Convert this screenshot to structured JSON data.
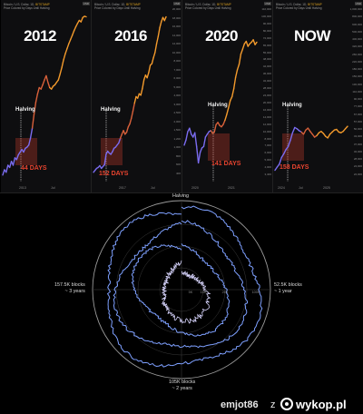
{
  "chart_data": [
    {
      "type": "line",
      "panel_title": "2012",
      "header": [
        "Bitcoin / U.S. Dollar, 1D, BITSTAMP",
        "Price Colored by Days Until Halving"
      ],
      "header_exchange": "BITSTAMP",
      "currency": "USD",
      "halving_label": "Halving",
      "days_label": "44 DAYS",
      "x_tick_labels": [
        "2013",
        "Jul"
      ],
      "y_tick_labels": [],
      "series_values": [
        5,
        6,
        5.5,
        7,
        6.5,
        8,
        7,
        9,
        8.5,
        10,
        11,
        12,
        11,
        12.5,
        13,
        14,
        18,
        25,
        40,
        60,
        80,
        100,
        95,
        110,
        130,
        150,
        120,
        100,
        95,
        105,
        110,
        120,
        130,
        160,
        200,
        260,
        320,
        380,
        450,
        520,
        600,
        700,
        800,
        900,
        1000,
        950,
        1100,
        1150,
        1130
      ]
    },
    {
      "type": "line",
      "panel_title": "2016",
      "header": [
        "Bitcoin / U.S. Dollar, 1D, BITSTAMP",
        "Price Colored by Days Until Halving"
      ],
      "header_exchange": "BITSTAMP",
      "currency": "USD",
      "halving_label": "Halving",
      "days_label": "152 DAYS",
      "x_tick_labels": [
        "2017",
        "Jul"
      ],
      "y_tick_labels": [
        "20,000",
        "18,000",
        "16,000",
        "14,000",
        "12,000",
        "10,000",
        "8,000",
        "7,000",
        "6,000",
        "5,000",
        "4,000",
        "3,000",
        "2,500",
        "2,000",
        "1,500",
        "1,200",
        "1,000",
        "800",
        "600",
        "400"
      ],
      "series_values": [
        380,
        400,
        420,
        430,
        450,
        420,
        440,
        460,
        600,
        650,
        620,
        600,
        640,
        700,
        720,
        760,
        800,
        900,
        1000,
        1100,
        1000,
        1050,
        1200,
        1300,
        1500,
        1800,
        2200,
        2600,
        2500,
        2800,
        2700,
        3200,
        4000,
        4500,
        4200,
        4800,
        5800,
        6000,
        7000,
        8000,
        10000,
        12000,
        15000,
        17500,
        19500,
        18000,
        19800
      ]
    },
    {
      "type": "line",
      "panel_title": "2020",
      "header": [
        "Bitcoin / U.S. Dollar, 1D, BITSTAMP",
        "Price Colored by Days Until Halving"
      ],
      "header_exchange": "BITSTAMP",
      "currency": "USD",
      "halving_label": "Halving",
      "days_label": "141 DAYS",
      "x_tick_labels": [
        "2020",
        "2021"
      ],
      "y_tick_labels": [
        "110,000",
        "100,000",
        "90,000",
        "80,000",
        "72,000",
        "65,000",
        "55,000",
        "48,000",
        "42,000",
        "36,000",
        "32,000",
        "28,000",
        "24,000",
        "20,000",
        "16,000",
        "14,000",
        "12,000",
        "10,000",
        "8,000",
        "7,000",
        "6,000",
        "5,000",
        "4,000",
        "3,400"
      ],
      "series_values": [
        7200,
        8000,
        9500,
        10200,
        9000,
        8500,
        9300,
        7000,
        5000,
        6200,
        6800,
        7000,
        8500,
        9000,
        9500,
        9700,
        9200,
        9400,
        11000,
        11500,
        10800,
        10500,
        11000,
        12000,
        13500,
        15500,
        18000,
        19500,
        23000,
        29000,
        34000,
        38000,
        47000,
        52000,
        58000,
        61000,
        55000,
        58000,
        60000,
        63000,
        57000,
        60000
      ]
    },
    {
      "type": "line",
      "panel_title": "NOW",
      "header": [
        "Bitcoin / U.S. Dollar, 1D, BITSTAMP",
        "Price Colored by Days Until Halving"
      ],
      "header_exchange": "BITSTAMP",
      "currency": "USD",
      "halving_label": "Halving",
      "days_label": "158 DAYS",
      "x_tick_labels": [
        "2024",
        "Jul",
        "2025"
      ],
      "y_tick_labels": [
        "1,000,000",
        "800,000",
        "600,000",
        "500,000",
        "400,000",
        "320,000",
        "260,000",
        "220,000",
        "180,000",
        "150,000",
        "130,000",
        "110,000",
        "90,000",
        "77,000",
        "67,000",
        "57,000",
        "50,000",
        "43,000",
        "37,000",
        "32,000",
        "28,000",
        "24,000",
        "22,000"
      ],
      "series_values": [
        26000,
        28000,
        30000,
        35000,
        38000,
        42000,
        45000,
        52000,
        62000,
        70000,
        68000,
        65000,
        63000,
        60000,
        66000,
        69000,
        64000,
        60000,
        56000,
        58000,
        62000,
        64000,
        61000,
        57000,
        55000,
        60000,
        63000,
        66000,
        67000,
        63000,
        62000,
        64000,
        68000,
        72000
      ]
    },
    {
      "type": "radial",
      "top_label": "Halving",
      "right_label": [
        "52.5K blocks",
        "~ 1 year"
      ],
      "bottom_label": [
        "105K blocks",
        "~ 2 years"
      ],
      "left_label": [
        "157.5K blocks",
        "~ 3 years"
      ],
      "radial_ticks": [
        "5K",
        "10K",
        "20K",
        "100K"
      ],
      "rings": 4
    }
  ],
  "footer": {
    "username": "emjot86",
    "separator": "z",
    "site": "wykop.pl"
  }
}
